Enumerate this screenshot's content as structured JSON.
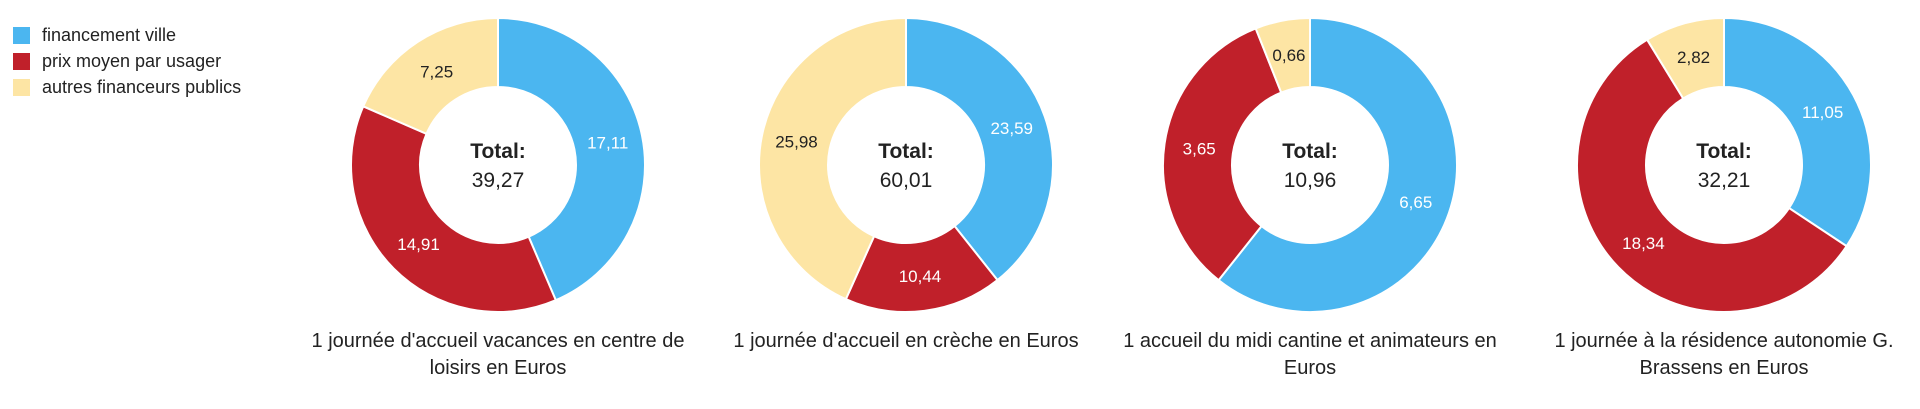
{
  "legend": [
    {
      "label": "financement ville",
      "color": "#4bb6f0"
    },
    {
      "label": "prix moyen par usager",
      "color": "#c0202a"
    },
    {
      "label": "autres financeurs publics",
      "color": "#fde5a4"
    }
  ],
  "chart_data": [
    {
      "type": "pie",
      "title": "1 journée d'accueil vacances en centre de loisirs en Euros",
      "categories": [
        "financement ville",
        "prix moyen par usager",
        "autres financeurs publics"
      ],
      "values": [
        17.11,
        14.91,
        7.25
      ],
      "labels": [
        "17,11",
        "14,91",
        "7,25"
      ],
      "total_label": "Total:",
      "total": "39,27"
    },
    {
      "type": "pie",
      "title": "1 journée d'accueil en crèche en Euros",
      "categories": [
        "financement ville",
        "prix moyen par usager",
        "autres financeurs publics"
      ],
      "values": [
        23.59,
        10.44,
        25.98
      ],
      "labels": [
        "23,59",
        "10,44",
        "25,98"
      ],
      "total_label": "Total:",
      "total": "60,01"
    },
    {
      "type": "pie",
      "title": "1 accueil du midi cantine et animateurs en Euros",
      "categories": [
        "financement ville",
        "prix moyen par usager",
        "autres financeurs publics"
      ],
      "values": [
        6.65,
        3.65,
        0.66
      ],
      "labels": [
        "6,65",
        "3,65",
        "0,66"
      ],
      "total_label": "Total:",
      "total": "10,96"
    },
    {
      "type": "pie",
      "title": "1 journée à la résidence autonomie G. Brassens en Euros",
      "categories": [
        "financement ville",
        "prix moyen par usager",
        "autres financeurs publics"
      ],
      "values": [
        11.05,
        18.34,
        2.82
      ],
      "labels": [
        "11,05",
        "18,34",
        "2,82"
      ],
      "total_label": "Total:",
      "total": "32,21"
    }
  ]
}
